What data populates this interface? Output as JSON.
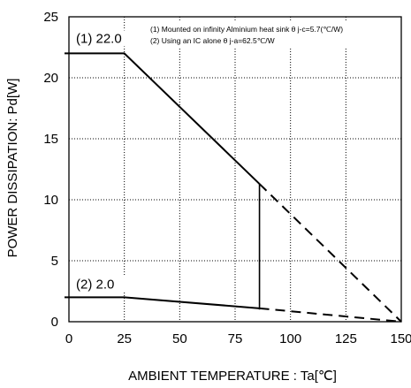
{
  "chart_data": {
    "type": "line",
    "xlabel": "AMBIENT TEMPERATURE : Ta[℃]",
    "ylabel": "POWER DISSIPATION: Pd[W]",
    "xlim": [
      0,
      150
    ],
    "ylim": [
      0,
      25
    ],
    "x_ticks": [
      0,
      25,
      50,
      75,
      100,
      125,
      150
    ],
    "y_ticks": [
      0,
      5,
      10,
      15,
      20,
      25
    ],
    "grid": true,
    "notes": [
      "(1) Mounted on infinity Alminium heat sink θ j-c=5.7(℃/W)",
      "(2) Using an IC alone θ j-a=62.5℃/W"
    ],
    "series": [
      {
        "label": "(1) 22.0",
        "solid": [
          [
            -2,
            22.0
          ],
          [
            25,
            22.0
          ],
          [
            86,
            11.3
          ]
        ],
        "dashed": [
          [
            86,
            11.3
          ],
          [
            150,
            0
          ]
        ]
      },
      {
        "label": "(2) 2.0",
        "solid": [
          [
            -2,
            2.0
          ],
          [
            25,
            2.0
          ],
          [
            86,
            1.1
          ]
        ],
        "dashed": [
          [
            86,
            1.1
          ],
          [
            150,
            0
          ]
        ]
      }
    ],
    "vertical_line": {
      "x": 86,
      "y_from": 1.0,
      "y_to": 11.3
    }
  }
}
